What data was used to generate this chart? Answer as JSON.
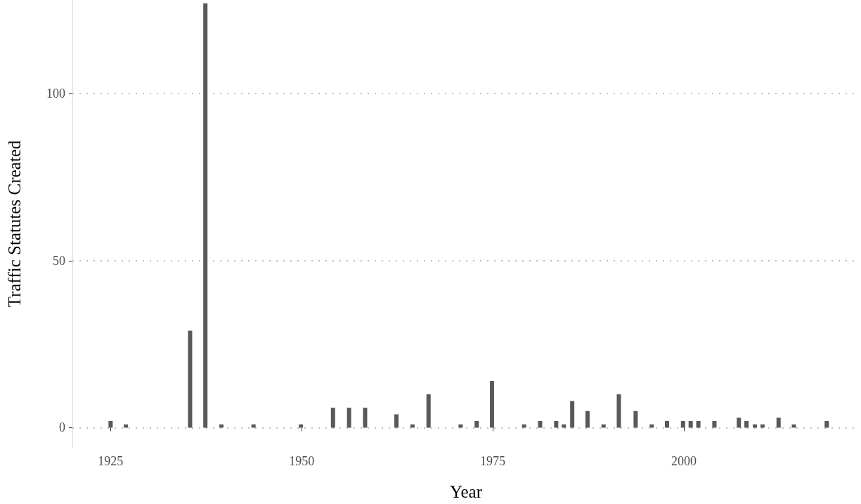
{
  "chart_data": {
    "type": "bar",
    "xlabel": "Year",
    "ylabel": "Traffic Statutes Created",
    "x": [
      1925,
      1927,
      1935.4,
      1937.4,
      1939.5,
      1943.7,
      1949.9,
      1954.1,
      1956.2,
      1958.3,
      1962.4,
      1964.5,
      1966.6,
      1970.8,
      1972.9,
      1974.9,
      1979.1,
      1981.2,
      1983.3,
      1984.3,
      1985.4,
      1987.4,
      1989.5,
      1991.5,
      1993.7,
      1995.8,
      1997.8,
      1999.9,
      2000.9,
      2001.9,
      2004.0,
      2007.2,
      2008.2,
      2009.3,
      2010.3,
      2012.4,
      2014.4,
      2018.7
    ],
    "values": [
      2,
      1,
      29,
      127,
      1,
      1,
      1,
      6,
      6,
      6,
      4,
      1,
      10,
      1,
      2,
      14,
      1,
      2,
      2,
      1,
      8,
      5,
      1,
      10,
      5,
      1,
      2,
      2,
      2,
      2,
      2,
      3,
      2,
      1,
      1,
      3,
      1,
      2
    ],
    "color": "#595959",
    "xlim": [
      1920,
      2023
    ],
    "xticks": [
      1925,
      1950,
      1975,
      2000
    ],
    "ylim": [
      -6,
      128
    ],
    "yticks": [
      0,
      50,
      100
    ],
    "grid": "y"
  }
}
